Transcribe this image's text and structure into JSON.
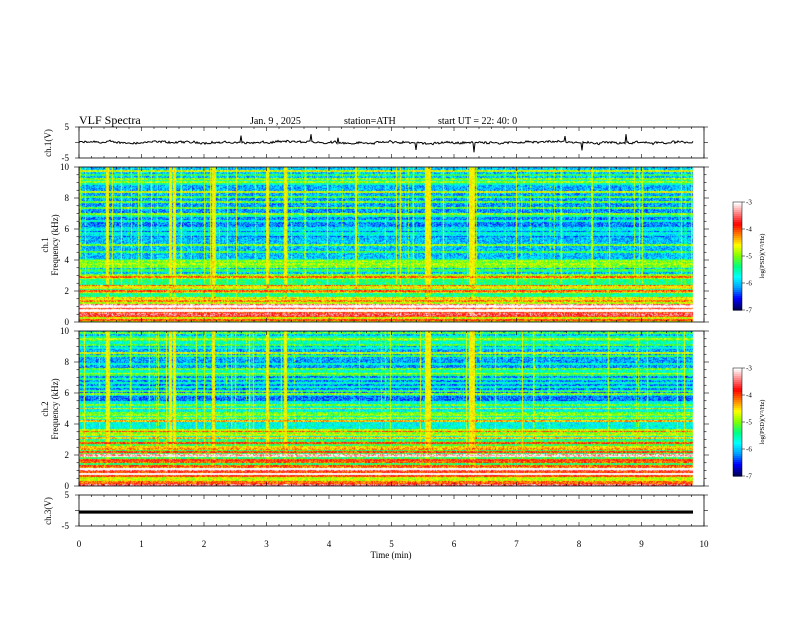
{
  "header": {
    "title": "VLF  Spectra",
    "date": "Jan.  9  , 2025",
    "station": "station=ATH",
    "start": "start  UT  =   22: 40: 0"
  },
  "chart_data": [
    {
      "type": "line",
      "name": "ch1-waveform",
      "ylabel": "ch.1(V)",
      "ylim": [
        -5,
        5
      ],
      "yticks": [
        "5",
        "-5"
      ],
      "xlim": [
        0,
        10
      ],
      "trace_level": 0,
      "trace_color": "#000000"
    },
    {
      "type": "heatmap",
      "name": "ch1-spectrogram",
      "ylabel": "ch.1\nFrequency  (kHz)",
      "ylim": [
        0,
        10
      ],
      "yticks": [
        "0",
        "2",
        "4",
        "6",
        "8",
        "10"
      ],
      "xlim": [
        0,
        10
      ],
      "data_end_min": 9.83,
      "colorbar": {
        "label": "log(PSD)(V²/Hz)",
        "range": [
          -7,
          -3
        ],
        "ticks": [
          "-3",
          "-4",
          "-5",
          "-6",
          "-7"
        ],
        "colors": [
          "#000060",
          "#0000ff",
          "#00a0ff",
          "#00ffff",
          "#00ff80",
          "#80ff00",
          "#ffff00",
          "#ff8000",
          "#ff0000",
          "#ff8080",
          "#ffffff"
        ]
      }
    },
    {
      "type": "heatmap",
      "name": "ch2-spectrogram",
      "ylabel": "ch.2\nFrequency  (kHz)",
      "ylim": [
        0,
        10
      ],
      "yticks": [
        "0",
        "2",
        "4",
        "6",
        "8",
        "10"
      ],
      "xlim": [
        0,
        10
      ],
      "data_end_min": 9.83,
      "colorbar": {
        "label": "log(PSD)(V²/Hz)",
        "range": [
          -7,
          -3
        ],
        "ticks": [
          "-3",
          "-4",
          "-5",
          "-6",
          "-7"
        ],
        "colors": [
          "#000060",
          "#0000ff",
          "#00a0ff",
          "#00ffff",
          "#00ff80",
          "#80ff00",
          "#ffff00",
          "#ff8000",
          "#ff0000",
          "#ff8080",
          "#ffffff"
        ]
      }
    },
    {
      "type": "line",
      "name": "ch3-waveform",
      "ylabel": "ch.3(V)",
      "ylim": [
        -5,
        5
      ],
      "yticks": [
        "5",
        "-5"
      ],
      "xlim": [
        0,
        10
      ],
      "trace_level": -0.5,
      "trace_color": "#000000"
    }
  ],
  "xaxis": {
    "label": "Time  (min)",
    "ticks": [
      "0",
      "1",
      "2",
      "3",
      "4",
      "5",
      "6",
      "7",
      "8",
      "9",
      "10"
    ]
  }
}
